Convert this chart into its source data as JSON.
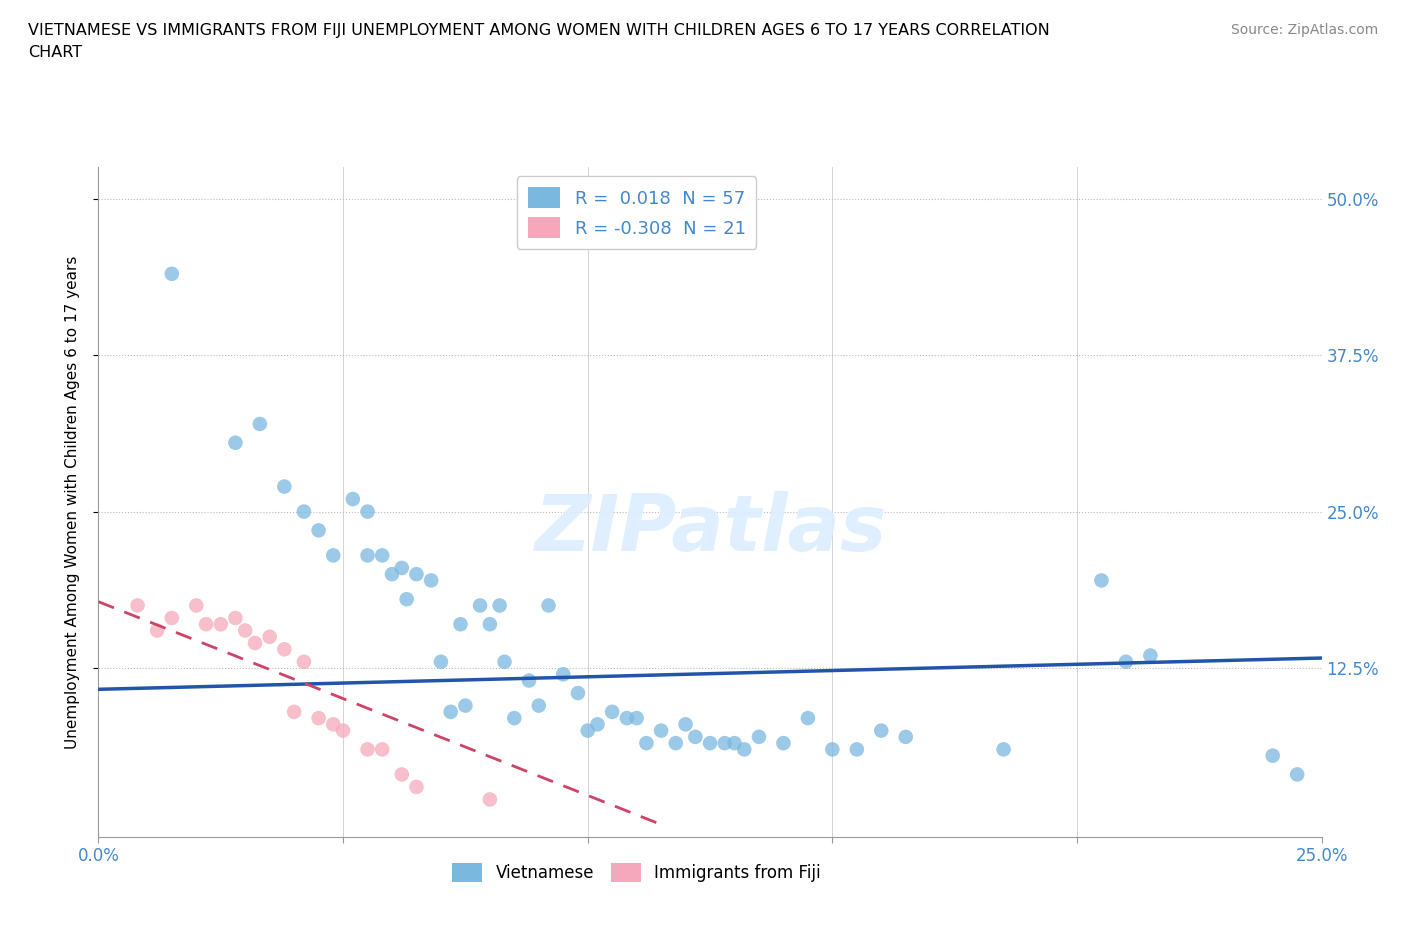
{
  "title_line1": "VIETNAMESE VS IMMIGRANTS FROM FIJI UNEMPLOYMENT AMONG WOMEN WITH CHILDREN AGES 6 TO 17 YEARS CORRELATION",
  "title_line2": "CHART",
  "source": "Source: ZipAtlas.com",
  "xlim": [
    0,
    0.25
  ],
  "ylim": [
    -0.01,
    0.525
  ],
  "ylabel": "Unemployment Among Women with Children Ages 6 to 17 years",
  "legend1_r": "R = ",
  "legend1_rv": " 0.018",
  "legend1_n": "  N = ",
  "legend1_nv": "57",
  "legend2_r": "R = ",
  "legend2_rv": "-0.308",
  "legend2_n": "  N = ",
  "legend2_nv": "21",
  "viet_color": "#7ab8e0",
  "fiji_color": "#f5a8bb",
  "viet_line_color": "#2255aa",
  "fiji_line_color": "#cc4466",
  "tick_color": "#4488cc",
  "watermark": "ZIPatlas",
  "viet_x": [
    0.015,
    0.028,
    0.033,
    0.038,
    0.042,
    0.045,
    0.048,
    0.052,
    0.055,
    0.055,
    0.058,
    0.06,
    0.062,
    0.063,
    0.065,
    0.068,
    0.07,
    0.072,
    0.074,
    0.075,
    0.078,
    0.08,
    0.082,
    0.083,
    0.085,
    0.088,
    0.09,
    0.092,
    0.095,
    0.098,
    0.1,
    0.102,
    0.105,
    0.108,
    0.11,
    0.112,
    0.115,
    0.118,
    0.12,
    0.122,
    0.125,
    0.128,
    0.13,
    0.132,
    0.135,
    0.14,
    0.145,
    0.15,
    0.155,
    0.16,
    0.165,
    0.185,
    0.21,
    0.215,
    0.24,
    0.245,
    0.205
  ],
  "viet_y": [
    0.44,
    0.305,
    0.32,
    0.27,
    0.25,
    0.235,
    0.215,
    0.26,
    0.25,
    0.215,
    0.215,
    0.2,
    0.205,
    0.18,
    0.2,
    0.195,
    0.13,
    0.09,
    0.16,
    0.095,
    0.175,
    0.16,
    0.175,
    0.13,
    0.085,
    0.115,
    0.095,
    0.175,
    0.12,
    0.105,
    0.075,
    0.08,
    0.09,
    0.085,
    0.085,
    0.065,
    0.075,
    0.065,
    0.08,
    0.07,
    0.065,
    0.065,
    0.065,
    0.06,
    0.07,
    0.065,
    0.085,
    0.06,
    0.06,
    0.075,
    0.07,
    0.06,
    0.13,
    0.135,
    0.055,
    0.04,
    0.195
  ],
  "fiji_x": [
    0.008,
    0.012,
    0.015,
    0.02,
    0.022,
    0.025,
    0.028,
    0.03,
    0.032,
    0.035,
    0.038,
    0.04,
    0.042,
    0.045,
    0.048,
    0.05,
    0.055,
    0.058,
    0.062,
    0.065,
    0.08
  ],
  "fiji_y": [
    0.175,
    0.155,
    0.165,
    0.175,
    0.16,
    0.16,
    0.165,
    0.155,
    0.145,
    0.15,
    0.14,
    0.09,
    0.13,
    0.085,
    0.08,
    0.075,
    0.06,
    0.06,
    0.04,
    0.03,
    0.02
  ],
  "viet_trend_x": [
    0.0,
    0.25
  ],
  "viet_trend_y": [
    0.108,
    0.133
  ],
  "fiji_trend_x": [
    0.0,
    0.115
  ],
  "fiji_trend_y": [
    0.178,
    0.0
  ],
  "xticks": [
    0.0,
    0.05,
    0.1,
    0.15,
    0.2,
    0.25
  ],
  "yticks": [
    0.125,
    0.25,
    0.375,
    0.5
  ]
}
